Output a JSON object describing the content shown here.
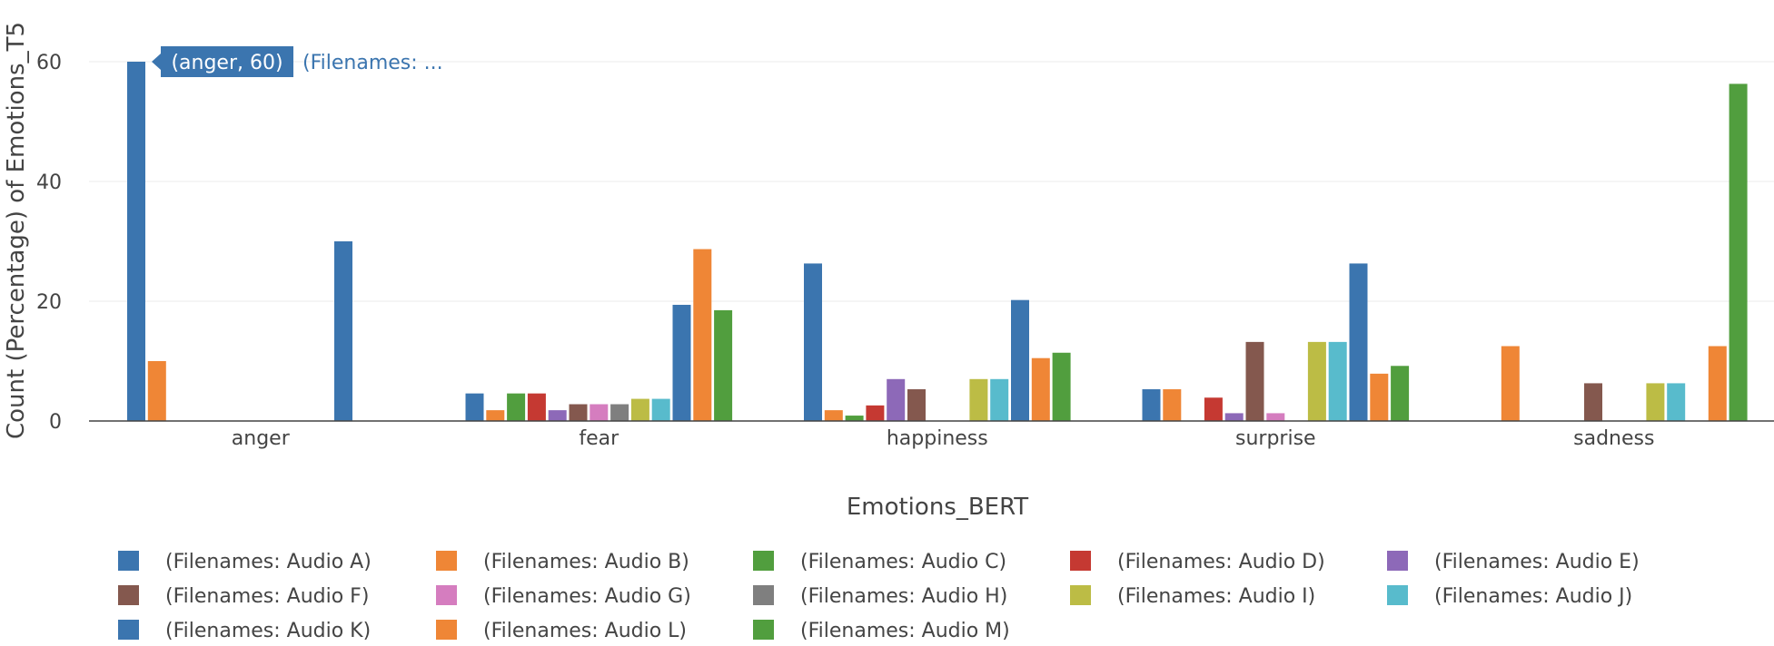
{
  "chart_data": {
    "type": "bar",
    "xlabel": "Emotions_BERT",
    "ylabel": "Count (Percentage) of Emotions_T5",
    "ylim": [
      0,
      65
    ],
    "yticks": [
      0,
      20,
      40,
      60
    ],
    "grid": true,
    "legend_position": "bottom",
    "categories": [
      "anger",
      "fear",
      "happiness",
      "surprise",
      "sadness"
    ],
    "series": [
      {
        "name": "(Filenames: Audio A)",
        "color": "#3b75af",
        "values": [
          60,
          4.6,
          26.3,
          5.3,
          null
        ]
      },
      {
        "name": "(Filenames: Audio B)",
        "color": "#ef8636",
        "values": [
          10,
          1.8,
          1.8,
          5.3,
          12.5
        ]
      },
      {
        "name": "(Filenames: Audio C)",
        "color": "#519e3e",
        "values": [
          null,
          4.6,
          0.9,
          null,
          null
        ]
      },
      {
        "name": "(Filenames: Audio D)",
        "color": "#c53932",
        "values": [
          null,
          4.6,
          2.6,
          3.9,
          null
        ]
      },
      {
        "name": "(Filenames: Audio E)",
        "color": "#8d69b8",
        "values": [
          null,
          1.8,
          7,
          1.3,
          null
        ]
      },
      {
        "name": "(Filenames: Audio F)",
        "color": "#84584e",
        "values": [
          null,
          2.8,
          5.3,
          13.2,
          6.3
        ]
      },
      {
        "name": "(Filenames: Audio G)",
        "color": "#d57dbf",
        "values": [
          null,
          2.8,
          null,
          1.3,
          null
        ]
      },
      {
        "name": "(Filenames: Audio H)",
        "color": "#7f7f7f",
        "values": [
          null,
          2.8,
          null,
          null,
          null
        ]
      },
      {
        "name": "(Filenames: Audio I)",
        "color": "#bcbc45",
        "values": [
          null,
          3.7,
          7,
          13.2,
          6.3
        ]
      },
      {
        "name": "(Filenames: Audio J)",
        "color": "#58bbcc",
        "values": [
          null,
          3.7,
          7,
          13.2,
          6.3
        ]
      },
      {
        "name": "(Filenames: Audio K)",
        "color": "#3b75af",
        "values": [
          30,
          19.4,
          20.2,
          26.3,
          null
        ]
      },
      {
        "name": "(Filenames: Audio L)",
        "color": "#ef8636",
        "values": [
          null,
          28.7,
          10.5,
          7.9,
          12.5
        ]
      },
      {
        "name": "(Filenames: Audio M)",
        "color": "#519e3e",
        "values": [
          null,
          18.5,
          11.4,
          9.2,
          56.3
        ]
      }
    ],
    "hover": {
      "label": "(anger, 60)",
      "series_text": "(Filenames: ...",
      "color": "#3b75af"
    }
  }
}
